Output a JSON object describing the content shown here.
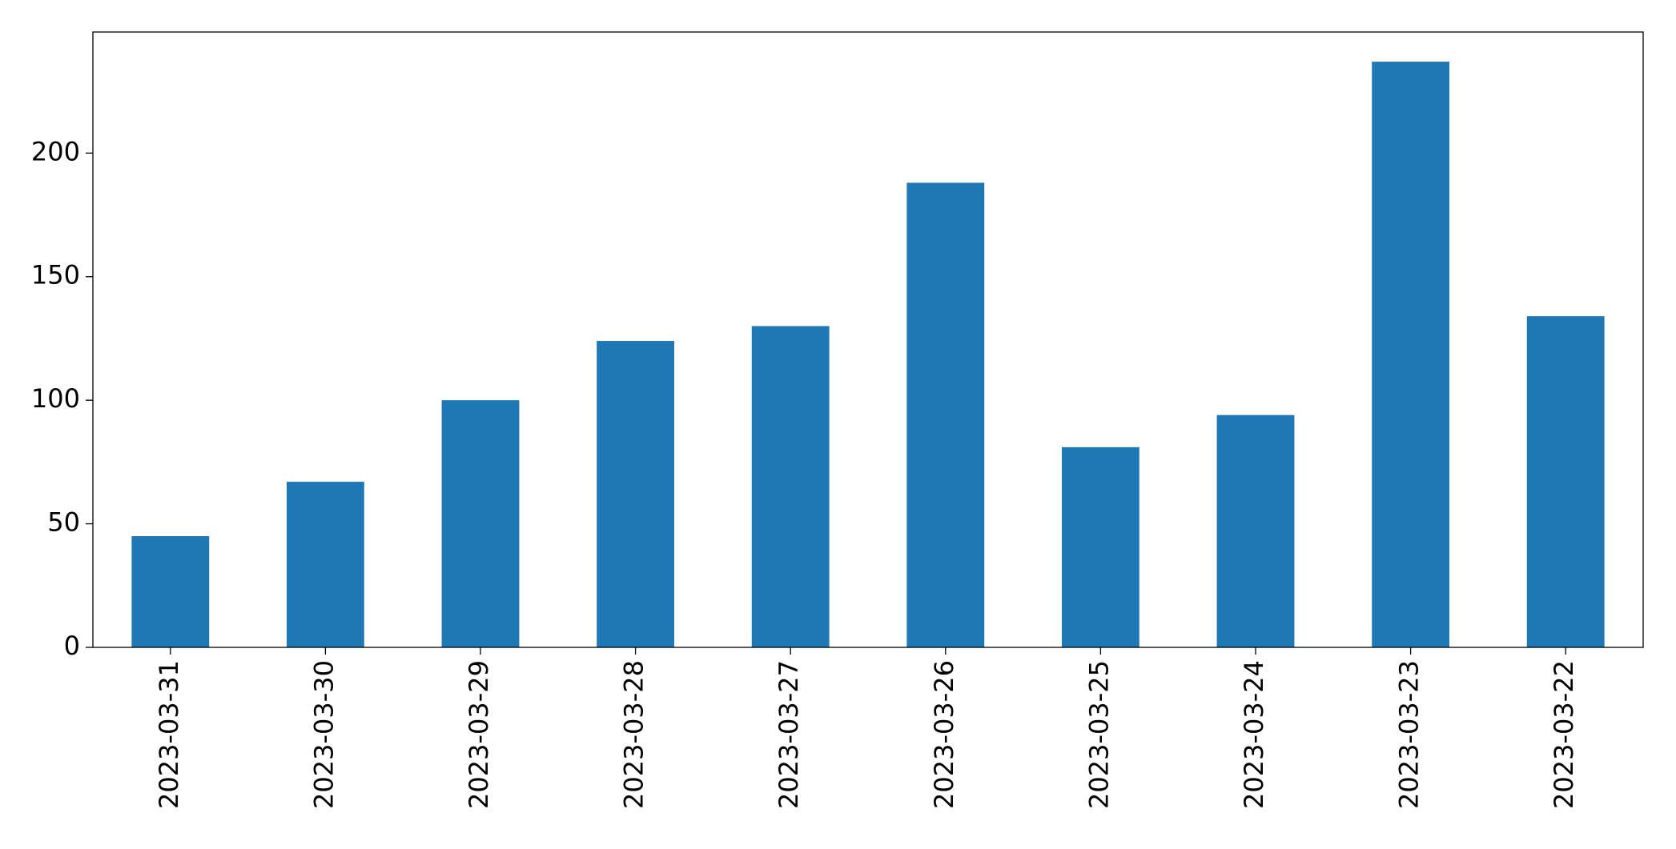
{
  "chart_data": {
    "type": "bar",
    "categories": [
      "2023-03-31",
      "2023-03-30",
      "2023-03-29",
      "2023-03-28",
      "2023-03-27",
      "2023-03-26",
      "2023-03-25",
      "2023-03-24",
      "2023-03-23",
      "2023-03-22"
    ],
    "values": [
      45,
      67,
      100,
      124,
      130,
      188,
      81,
      94,
      237,
      134
    ],
    "color": "#1f77b4",
    "ylim": [
      0,
      249
    ],
    "yticks": [
      0,
      50,
      100,
      150,
      200
    ],
    "grid": false
  }
}
